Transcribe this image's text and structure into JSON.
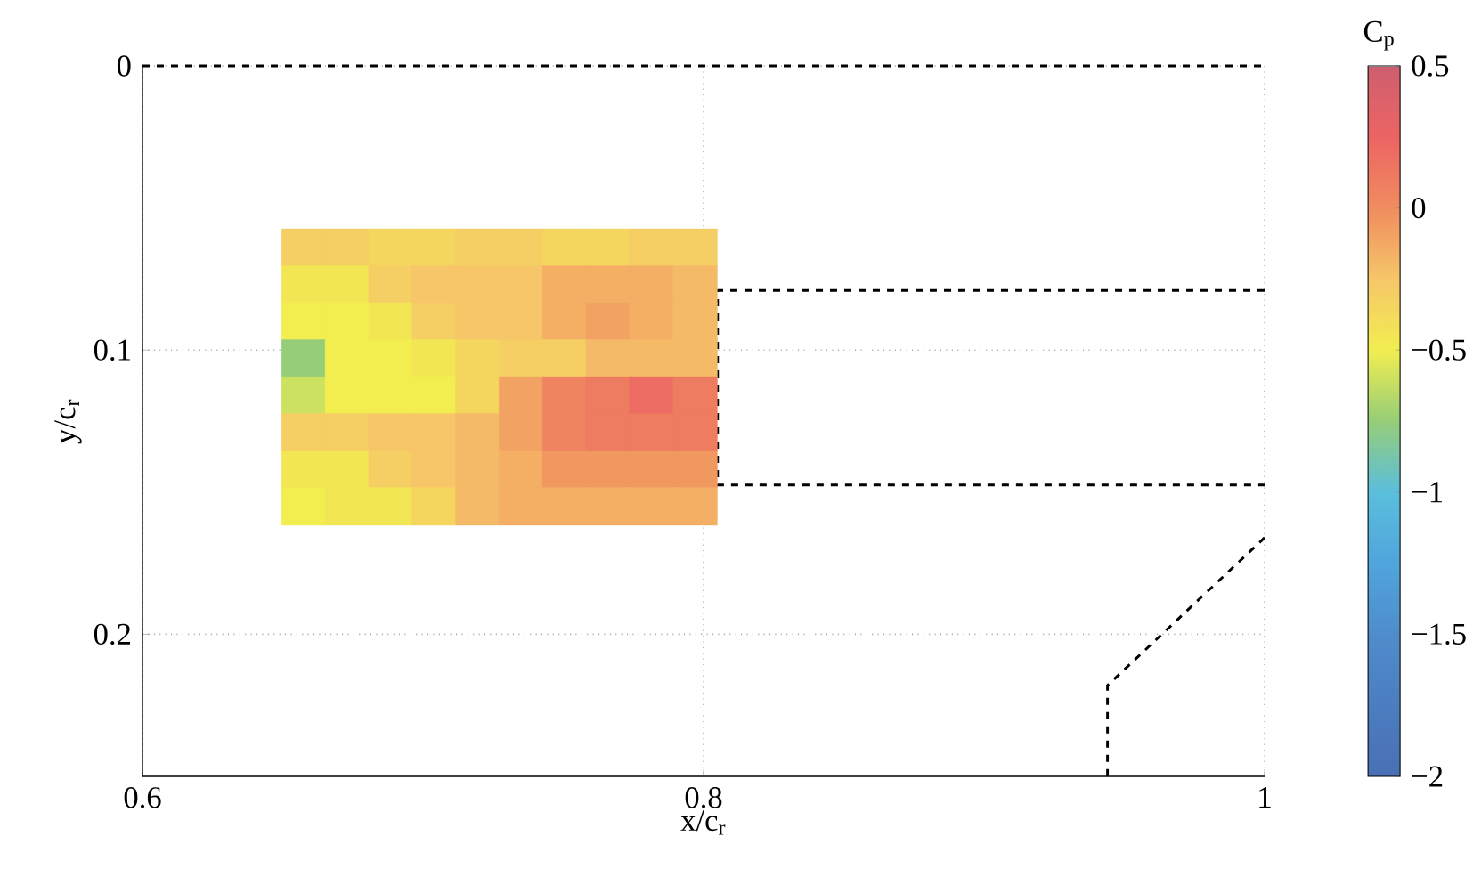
{
  "chart_data": {
    "type": "scatter",
    "xlabel": "x/c$_{r}$",
    "ylabel": "y/c$_{r}$",
    "clabel": "C$_{p}$",
    "xlim": [
      0.6,
      1.0
    ],
    "ylim": [
      0.25,
      0
    ],
    "xticks": [
      0.6,
      0.8,
      1
    ],
    "yticks": [
      0,
      0.1,
      0.2
    ],
    "grid": true,
    "clim": [
      -2,
      0.5
    ],
    "cticks": [
      {
        "value": -2,
        "label": "−2"
      },
      {
        "value": -1.5,
        "label": "−1.5"
      },
      {
        "value": -1,
        "label": "−1"
      },
      {
        "value": -0.5,
        "label": "−0.5"
      },
      {
        "value": 0,
        "label": "0"
      },
      {
        "value": 0.5,
        "label": "0.5"
      }
    ],
    "series": [
      {
        "marker": "square",
        "x": [
          0.6575,
          0.673,
          0.6885,
          0.704,
          0.7195,
          0.735,
          0.7505,
          0.766,
          0.7815,
          0.797,
          0.6575,
          0.673,
          0.6885,
          0.704,
          0.7195,
          0.735,
          0.7505,
          0.766,
          0.7815,
          0.797,
          0.6575,
          0.673,
          0.6885,
          0.704,
          0.7195,
          0.735,
          0.7505,
          0.766,
          0.7815,
          0.797,
          0.6575,
          0.673,
          0.6885,
          0.704,
          0.7195,
          0.735,
          0.7505,
          0.766,
          0.7815,
          0.797,
          0.6575,
          0.673,
          0.6885,
          0.704,
          0.7195,
          0.735,
          0.7505,
          0.766,
          0.7815,
          0.797,
          0.6575,
          0.673,
          0.6885,
          0.704,
          0.7195,
          0.735,
          0.7505,
          0.766,
          0.7815,
          0.797,
          0.6575,
          0.673,
          0.6885,
          0.704,
          0.7195,
          0.735,
          0.7505,
          0.766,
          0.7815,
          0.797,
          0.6575,
          0.673,
          0.6885,
          0.704,
          0.7195,
          0.735,
          0.7505,
          0.766,
          0.7815,
          0.797
        ],
        "values": [
          0.064,
          0.064,
          0.064,
          0.064,
          0.064,
          0.064,
          0.064,
          0.064,
          0.064,
          0.064,
          0.077,
          0.077,
          0.077,
          0.077,
          0.077,
          0.077,
          0.077,
          0.077,
          0.077,
          0.077,
          0.09,
          0.09,
          0.09,
          0.09,
          0.09,
          0.09,
          0.09,
          0.09,
          0.09,
          0.09,
          0.103,
          0.103,
          0.103,
          0.103,
          0.103,
          0.103,
          0.103,
          0.103,
          0.103,
          0.103,
          0.116,
          0.116,
          0.116,
          0.116,
          0.116,
          0.116,
          0.116,
          0.116,
          0.116,
          0.116,
          0.129,
          0.129,
          0.129,
          0.129,
          0.129,
          0.129,
          0.129,
          0.129,
          0.129,
          0.129,
          0.142,
          0.142,
          0.142,
          0.142,
          0.142,
          0.142,
          0.142,
          0.142,
          0.142,
          0.142,
          0.155,
          0.155,
          0.155,
          0.155,
          0.155,
          0.155,
          0.155,
          0.155,
          0.155,
          0.155
        ],
        "colors": [
          "#f5ce64",
          "#f5ce64",
          "#f4d65f",
          "#f4d65f",
          "#f5ce64",
          "#f5ce64",
          "#f4d65f",
          "#f4d65f",
          "#f5ce64",
          "#f5ce64",
          "#f3e655",
          "#f3e655",
          "#f5ce64",
          "#f6c669",
          "#f6c669",
          "#f6c669",
          "#f4af65",
          "#f4af65",
          "#f4af65",
          "#f5ba67",
          "#f2ee50",
          "#f2ee50",
          "#f3e655",
          "#f5ce64",
          "#f6c669",
          "#f6c669",
          "#f4af65",
          "#f2a363",
          "#f4af65",
          "#f5ba67",
          "#96cd78",
          "#f2ee50",
          "#f2ee50",
          "#f3e655",
          "#f4d65f",
          "#f5ce64",
          "#f5ce64",
          "#f5ba67",
          "#f5ba67",
          "#f5ba67",
          "#cde160",
          "#f2ee50",
          "#f2ee50",
          "#f2ee50",
          "#f4d65f",
          "#f2a363",
          "#ef8460",
          "#ee7c61",
          "#ed6c63",
          "#ee7c61",
          "#f5ce64",
          "#f5ce64",
          "#f6c669",
          "#f6c669",
          "#f5ba67",
          "#f2a363",
          "#ef8460",
          "#ee7c61",
          "#ee7c61",
          "#ee7c61",
          "#f3e655",
          "#f3e655",
          "#f5ce64",
          "#f6c669",
          "#f5ba67",
          "#f4af65",
          "#f19861",
          "#f19861",
          "#f19861",
          "#f19861",
          "#f2ee50",
          "#f3e655",
          "#f3e655",
          "#f4d65f",
          "#f5ba67",
          "#f4af65",
          "#f4af65",
          "#f4af65",
          "#f4af65",
          "#f4af65"
        ]
      },
      {
        "type": "line",
        "color": "#000000",
        "line_style": "dashed",
        "x": [
          0.6,
          1.0
        ],
        "values": [
          0,
          0
        ]
      },
      {
        "type": "line",
        "color": "#000000",
        "line_style": "dashed",
        "x": [
          1.0,
          0.805,
          0.805,
          1.0
        ],
        "values": [
          0.079,
          0.079,
          0.1475,
          0.1475
        ]
      },
      {
        "type": "line",
        "color": "#000000",
        "line_style": "dashed",
        "x": [
          1.0,
          0.944,
          0.944
        ],
        "values": [
          0.166,
          0.218,
          0.25
        ]
      }
    ]
  }
}
